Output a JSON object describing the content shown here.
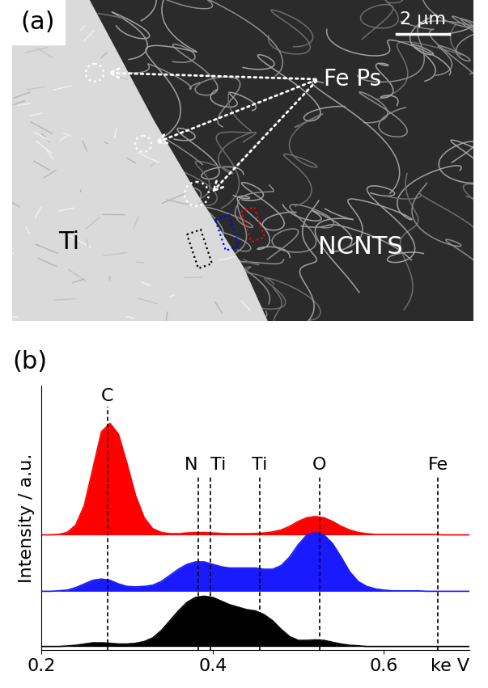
{
  "image_panel": {
    "panel_label": "(a)",
    "scale_bar": "2 μm",
    "annotation": "Fe Ps",
    "regions": [
      "Ti",
      "NCNTS"
    ]
  },
  "chart_data": {
    "type": "area",
    "title": "(b)",
    "xlabel": "ke V",
    "ylabel": "Intensity / a.u.",
    "xlim": [
      0.2,
      0.7
    ],
    "xticks": [
      0.2,
      0.4,
      0.6
    ],
    "ylim": [
      0,
      10.8
    ],
    "tick_labels": "x",
    "annotations": [
      {
        "text": "C",
        "x": 0.277
      },
      {
        "text": "N",
        "x": 0.383
      },
      {
        "text": "Ti",
        "x": 0.397
      },
      {
        "text": "Ti",
        "x": 0.455
      },
      {
        "text": "O",
        "x": 0.525
      },
      {
        "text": "Fe",
        "x": 0.663
      }
    ],
    "x": [
      0.2,
      0.21,
      0.22,
      0.23,
      0.24,
      0.25,
      0.26,
      0.27,
      0.28,
      0.29,
      0.3,
      0.31,
      0.32,
      0.33,
      0.34,
      0.35,
      0.36,
      0.37,
      0.38,
      0.39,
      0.4,
      0.41,
      0.42,
      0.43,
      0.44,
      0.45,
      0.46,
      0.47,
      0.48,
      0.49,
      0.5,
      0.51,
      0.52,
      0.53,
      0.54,
      0.55,
      0.56,
      0.57,
      0.58,
      0.59,
      0.6,
      0.61,
      0.62,
      0.63,
      0.64,
      0.65,
      0.66,
      0.67,
      0.68,
      0.69,
      0.7
    ],
    "series": [
      {
        "color": "#ff0000",
        "values": [
          4.7,
          4.7,
          4.72,
          4.8,
          5.1,
          5.9,
          7.4,
          8.9,
          9.25,
          8.8,
          7.6,
          6.3,
          5.4,
          4.95,
          4.8,
          4.75,
          4.75,
          4.78,
          4.8,
          4.8,
          4.78,
          4.76,
          4.75,
          4.75,
          4.75,
          4.76,
          4.78,
          4.82,
          4.9,
          5.05,
          5.25,
          5.4,
          5.45,
          5.4,
          5.25,
          5.05,
          4.9,
          4.8,
          4.75,
          4.72,
          4.72,
          4.72,
          4.72,
          4.72,
          4.72,
          4.72,
          4.72,
          4.7,
          4.7,
          4.7,
          4.7
        ]
      },
      {
        "color": "#1a1aff",
        "values": [
          2.4,
          2.4,
          2.42,
          2.45,
          2.55,
          2.7,
          2.85,
          2.9,
          2.85,
          2.7,
          2.6,
          2.58,
          2.6,
          2.65,
          2.8,
          3.05,
          3.3,
          3.5,
          3.6,
          3.6,
          3.5,
          3.4,
          3.35,
          3.35,
          3.35,
          3.35,
          3.3,
          3.3,
          3.45,
          3.8,
          4.3,
          4.7,
          4.8,
          4.7,
          4.35,
          3.8,
          3.2,
          2.8,
          2.6,
          2.5,
          2.45,
          2.42,
          2.42,
          2.42,
          2.42,
          2.4,
          2.4,
          2.4,
          2.4,
          2.4,
          2.4
        ]
      },
      {
        "color": "#000000",
        "values": [
          0.15,
          0.15,
          0.15,
          0.17,
          0.2,
          0.25,
          0.3,
          0.3,
          0.28,
          0.25,
          0.25,
          0.28,
          0.35,
          0.5,
          0.8,
          1.2,
          1.6,
          1.95,
          2.15,
          2.2,
          2.15,
          2.0,
          1.85,
          1.75,
          1.65,
          1.6,
          1.45,
          1.2,
          0.85,
          0.55,
          0.4,
          0.4,
          0.42,
          0.4,
          0.32,
          0.25,
          0.2,
          0.18,
          0.15,
          0.15,
          0.15,
          0.15,
          0.15,
          0.15,
          0.15,
          0.15,
          0.15,
          0.15,
          0.15,
          0.15,
          0.15
        ]
      }
    ]
  }
}
